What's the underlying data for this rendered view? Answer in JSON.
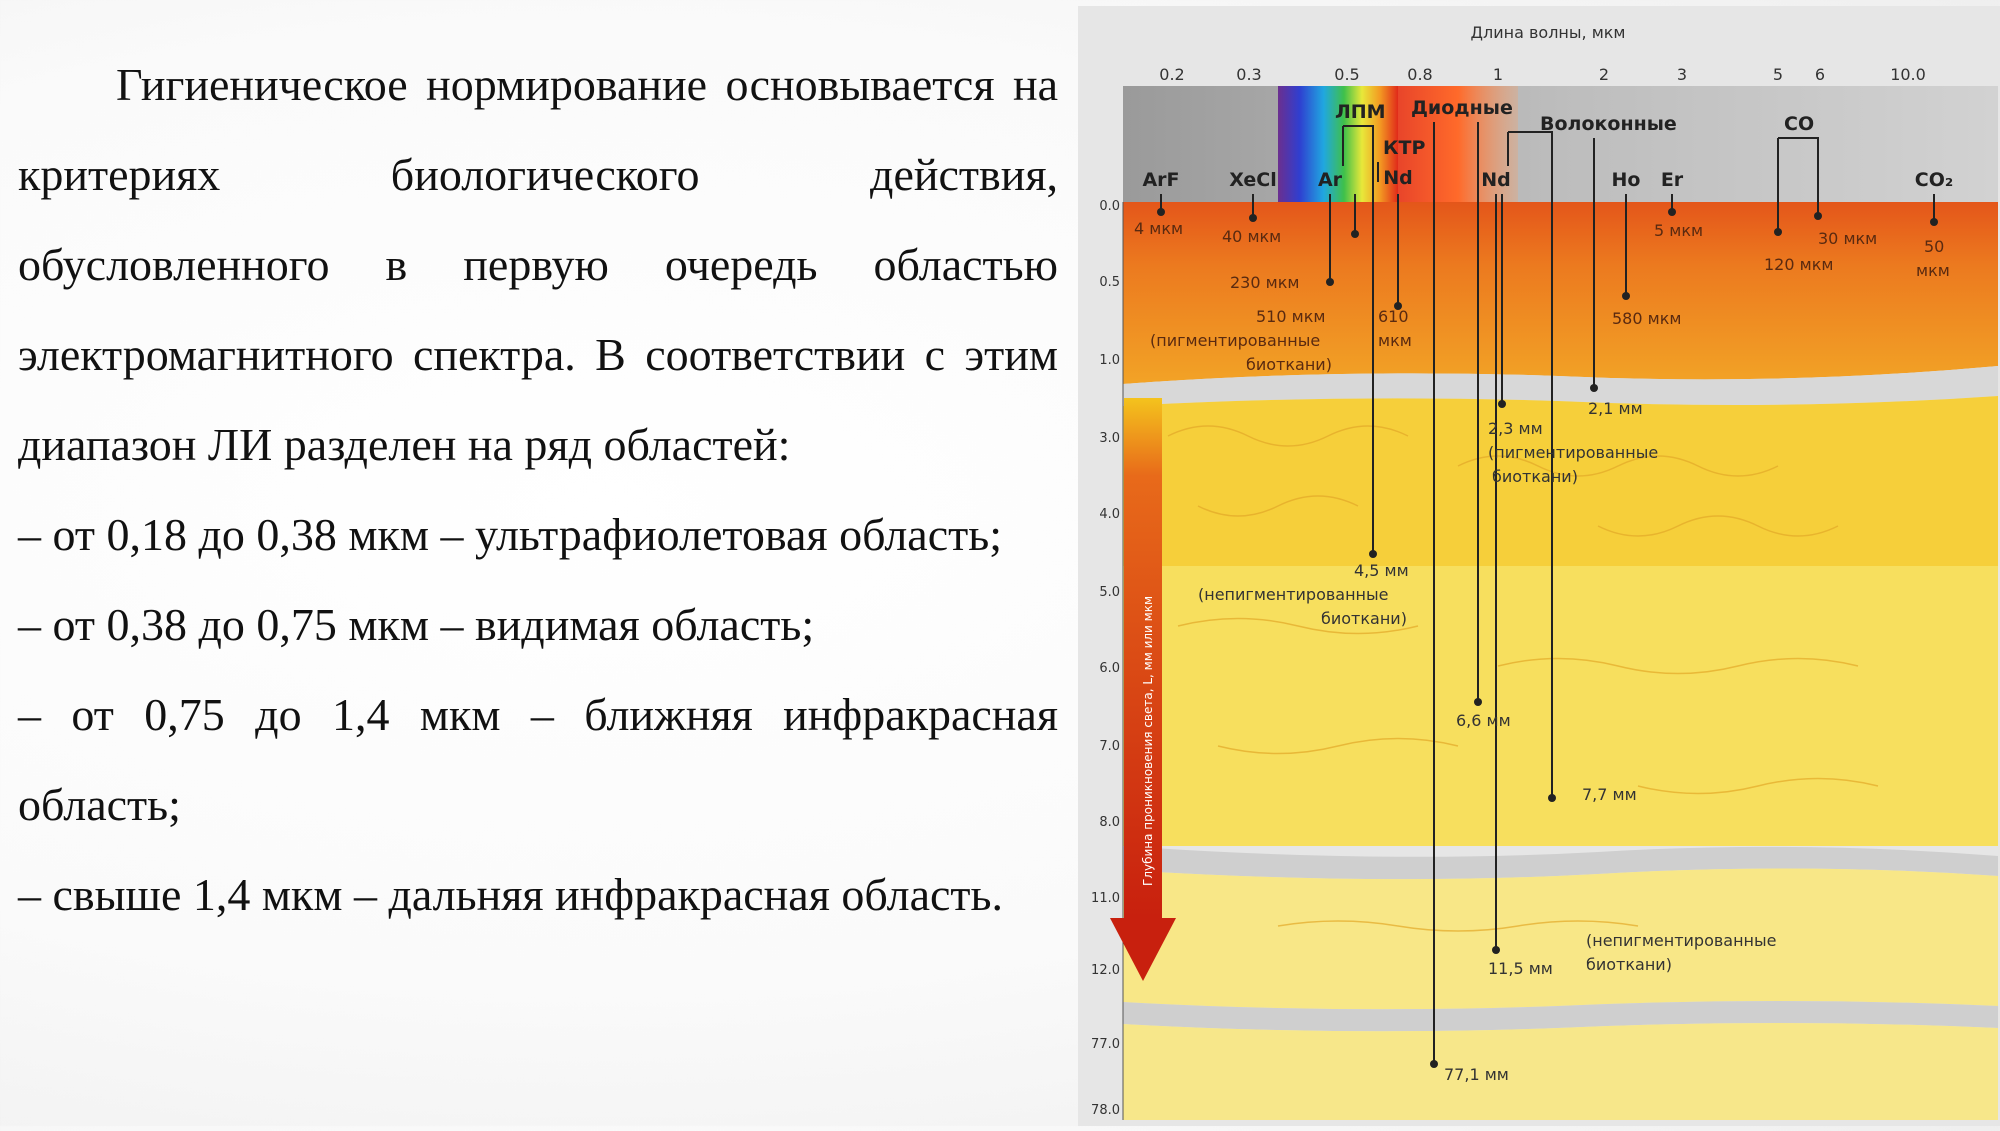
{
  "paragraphs": [
    "Гигиеническое нормирование основывается на критериях биологического действия, обусловленного в первую очередь областью электромагнитного спектра. В соответствии с этим диапазон ЛИ разделен на ряд областей:",
    "– от 0,18 до 0,38 мкм – ультрафиолетовая область;",
    "– от 0,38 до 0,75 мкм – видимая область;",
    "– от 0,75 до 1,4 мкм – ближняя инфракрасная область;",
    "– свыше 1,4 мкм – дальняя инфракрасная область."
  ],
  "diagram": {
    "axis_title": "Длина волны, мкм",
    "wavelength_ticks": [
      "0.2",
      "0.3",
      "0.5",
      "0.8",
      "1",
      "2",
      "3",
      "5",
      "6",
      "10.0"
    ],
    "depth_ticks": [
      "0.0",
      "0.5",
      "1.0",
      "3.0",
      "4.0",
      "5.0",
      "6.0",
      "7.0",
      "8.0",
      "11.0",
      "12.0",
      "77.0",
      "78.0"
    ],
    "vertical_axis_label": "Глубина проникновения света, L, мм или мкм",
    "groups": {
      "lpm": "ЛПМ",
      "diode": "Диодные",
      "fiber": "Волоконные",
      "co": "СО",
      "ktp": "КТР"
    },
    "lasers": {
      "arf": "ArF",
      "xecl": "XeCl",
      "ar": "Ar",
      "nd_ktp": "Nd",
      "nd": "Nd",
      "ho": "Ho",
      "er": "Er",
      "co2": "CO₂"
    },
    "depths": {
      "arf": "4 мкм",
      "xecl": "40 мкм",
      "ar_230": "230 мкм",
      "ar_510": "510 мкм",
      "ar_510_note_1": "(пигментированные",
      "ar_510_note_2": "биоткани)",
      "ktp_610_1": "610",
      "ktp_610_2": "мкм",
      "er": "5 мкм",
      "ho": "580 мкм",
      "co_120": "120 мкм",
      "co_30": "30 мкм",
      "co2_1": "50",
      "co2_2": "мкм",
      "fiber_21": "2,1 мм",
      "nd_23": "2,3 мм",
      "nd_23_note_1": "(пигментированные",
      "nd_23_note_2": "биоткани)",
      "lpm_45": "4,5 мм",
      "lpm_45_note_1": "(непигментированные",
      "lpm_45_note_2": "биоткани)",
      "diode_66": "6,6 мм",
      "fiber_77": "7,7 мм",
      "nd_115": "11,5 мм",
      "nd_115_note_1": "(непигментированные",
      "nd_115_note_2": "биоткани)",
      "diode_771": "77,1 мм"
    },
    "colors": {
      "surface": "#e8621a",
      "dermis": "#f2a326",
      "deep": "#f7e36a",
      "band": "#cfcfcf",
      "arrow": "#d42a12"
    }
  }
}
